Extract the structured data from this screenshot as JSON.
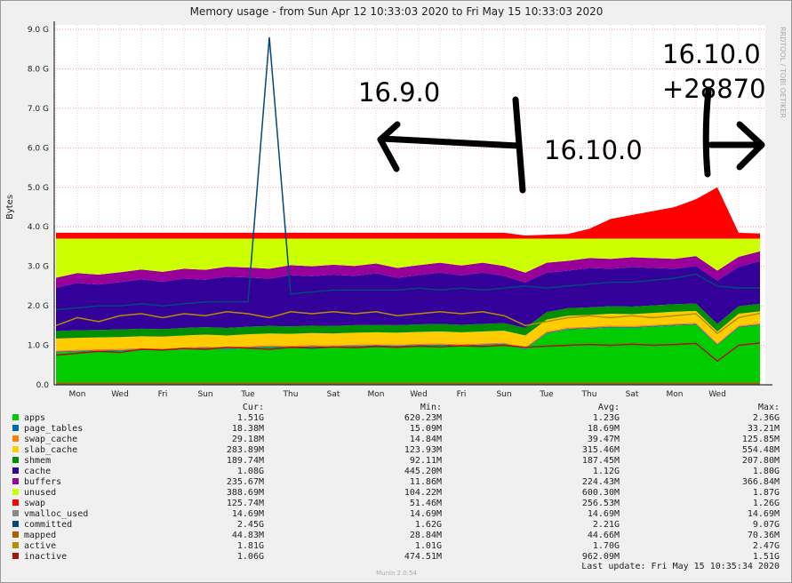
{
  "chart_data": {
    "type": "area",
    "title": "Memory usage - from Sun Apr 12 10:33:03 2020 to Fri May 15 10:33:03 2020",
    "y_label": "Bytes",
    "side_text": "RRDTOOL / TOBI OETIKER",
    "footer": "Munin 2.0.54",
    "last_update": "Last update: Fri May 15 10:35:34 2020",
    "stat_headers": [
      "Cur:",
      "Min:",
      "Avg:",
      "Max:"
    ],
    "annotations": [
      "16.9.0",
      "16.10.0",
      "16.10.0",
      "+28870"
    ],
    "categories": [
      null,
      "Mon",
      null,
      "Wed",
      null,
      "Fri",
      null,
      "Sun",
      null,
      "Tue",
      null,
      "Thu",
      null,
      "Sat",
      null,
      "Mon",
      null,
      "Wed",
      null,
      "Fri",
      null,
      "Sun",
      null,
      "Tue",
      null,
      "Thu",
      null,
      "Sat",
      null,
      "Mon",
      null,
      "Wed",
      null,
      null
    ],
    "ylim": [
      0,
      9
    ],
    "yticks": [
      {
        "value": 0,
        "label": "0.0"
      },
      {
        "value": 1,
        "label": "1.0 G"
      },
      {
        "value": 2,
        "label": "2.0 G"
      },
      {
        "value": 3,
        "label": "3.0 G"
      },
      {
        "value": 4,
        "label": "4.0 G"
      },
      {
        "value": 5,
        "label": "5.0 G"
      },
      {
        "value": 6,
        "label": "6.0 G"
      },
      {
        "value": 7,
        "label": "7.0 G"
      },
      {
        "value": 8,
        "label": "8.0 G"
      },
      {
        "value": 9,
        "label": "9.0 G"
      }
    ],
    "grid": true,
    "series": [
      {
        "name": "apps",
        "color": "#00cc00",
        "style": "stack",
        "stats": [
          "1.51G",
          "620.23M",
          "1.23G",
          "2.36G"
        ],
        "values": [
          0.82,
          0.84,
          0.85,
          0.86,
          0.88,
          0.87,
          0.9,
          0.92,
          0.9,
          0.93,
          0.95,
          0.94,
          0.96,
          0.95,
          0.97,
          0.98,
          0.97,
          0.99,
          1.0,
          0.98,
          1.0,
          1.02,
          0.9,
          1.3,
          1.4,
          1.42,
          1.45,
          1.44,
          1.47,
          1.5,
          1.52,
          1.0,
          1.45,
          1.51
        ]
      },
      {
        "name": "page_tables",
        "color": "#0066b3",
        "style": "stack",
        "stats": [
          "18.38M",
          "15.09M",
          "18.69M",
          "33.21M"
        ],
        "values": [
          0.02,
          0.02,
          0.02,
          0.02,
          0.02,
          0.02,
          0.02,
          0.02,
          0.02,
          0.02,
          0.02,
          0.02,
          0.02,
          0.02,
          0.02,
          0.02,
          0.02,
          0.02,
          0.02,
          0.02,
          0.02,
          0.02,
          0.02,
          0.02,
          0.02,
          0.02,
          0.02,
          0.02,
          0.02,
          0.02,
          0.02,
          0.02,
          0.02,
          0.02
        ]
      },
      {
        "name": "swap_cache",
        "color": "#ff8000",
        "style": "stack",
        "stats": [
          "29.18M",
          "14.84M",
          "39.47M",
          "125.85M"
        ],
        "values": [
          0.03,
          0.03,
          0.03,
          0.03,
          0.03,
          0.03,
          0.03,
          0.03,
          0.03,
          0.03,
          0.03,
          0.03,
          0.03,
          0.03,
          0.03,
          0.03,
          0.03,
          0.03,
          0.03,
          0.03,
          0.03,
          0.03,
          0.03,
          0.03,
          0.03,
          0.03,
          0.03,
          0.03,
          0.03,
          0.03,
          0.03,
          0.03,
          0.03,
          0.03
        ]
      },
      {
        "name": "slab_cache",
        "color": "#ffcc00",
        "style": "stack",
        "stats": [
          "283.89M",
          "123.93M",
          "315.46M",
          "554.48M"
        ],
        "values": [
          0.3,
          0.3,
          0.3,
          0.3,
          0.3,
          0.3,
          0.3,
          0.3,
          0.3,
          0.3,
          0.3,
          0.3,
          0.3,
          0.3,
          0.3,
          0.3,
          0.3,
          0.3,
          0.3,
          0.3,
          0.3,
          0.3,
          0.3,
          0.3,
          0.3,
          0.3,
          0.3,
          0.3,
          0.3,
          0.3,
          0.3,
          0.3,
          0.3,
          0.3
        ]
      },
      {
        "name": "shmem",
        "color": "#008f00",
        "style": "stack",
        "stats": [
          "189.74M",
          "92.11M",
          "187.45M",
          "207.80M"
        ],
        "values": [
          0.19,
          0.19,
          0.19,
          0.19,
          0.19,
          0.19,
          0.19,
          0.19,
          0.19,
          0.19,
          0.19,
          0.19,
          0.19,
          0.19,
          0.19,
          0.19,
          0.19,
          0.19,
          0.19,
          0.19,
          0.19,
          0.19,
          0.19,
          0.19,
          0.19,
          0.19,
          0.19,
          0.19,
          0.19,
          0.19,
          0.19,
          0.19,
          0.19,
          0.19
        ]
      },
      {
        "name": "cache",
        "color": "#330099",
        "style": "stack",
        "stats": [
          "1.08G",
          "445.20M",
          "1.12G",
          "1.80G"
        ],
        "values": [
          1.1,
          1.2,
          1.15,
          1.2,
          1.25,
          1.2,
          1.25,
          1.2,
          1.3,
          1.25,
          1.2,
          1.3,
          1.25,
          1.3,
          1.25,
          1.3,
          1.2,
          1.25,
          1.3,
          1.25,
          1.3,
          1.2,
          1.15,
          1.0,
          0.95,
          1.0,
          0.95,
          1.0,
          0.95,
          0.9,
          0.95,
          1.1,
          1.0,
          1.08
        ]
      },
      {
        "name": "buffers",
        "color": "#990099",
        "style": "stack",
        "stats": [
          "235.67M",
          "11.86M",
          "224.43M",
          "366.84M"
        ],
        "values": [
          0.25,
          0.25,
          0.25,
          0.25,
          0.25,
          0.25,
          0.25,
          0.25,
          0.25,
          0.25,
          0.25,
          0.25,
          0.25,
          0.25,
          0.25,
          0.25,
          0.25,
          0.25,
          0.25,
          0.25,
          0.25,
          0.25,
          0.25,
          0.25,
          0.25,
          0.25,
          0.25,
          0.25,
          0.25,
          0.25,
          0.25,
          0.25,
          0.25,
          0.25
        ]
      },
      {
        "name": "unused",
        "color": "#ccff00",
        "style": "stack",
        "stats": [
          "388.69M",
          "104.22M",
          "600.30M",
          "1.87G"
        ],
        "values": [
          0.99,
          0.87,
          0.91,
          0.85,
          0.78,
          0.84,
          0.76,
          0.79,
          0.71,
          0.73,
          0.76,
          0.67,
          0.7,
          0.66,
          0.69,
          0.63,
          0.74,
          0.67,
          0.61,
          0.68,
          0.61,
          0.69,
          0.86,
          0.61,
          0.56,
          0.49,
          0.51,
          0.47,
          0.49,
          0.51,
          0.44,
          0.81,
          0.46,
          0.32
        ]
      },
      {
        "name": "swap",
        "color": "#ff0000",
        "style": "stack",
        "stats": [
          "125.74M",
          "51.46M",
          "256.53M",
          "1.26G"
        ],
        "values": [
          0.15,
          0.15,
          0.15,
          0.15,
          0.15,
          0.15,
          0.15,
          0.15,
          0.15,
          0.15,
          0.15,
          0.15,
          0.15,
          0.15,
          0.15,
          0.15,
          0.15,
          0.15,
          0.15,
          0.15,
          0.15,
          0.15,
          0.08,
          0.1,
          0.12,
          0.25,
          0.5,
          0.6,
          0.7,
          0.8,
          1.0,
          1.3,
          0.15,
          0.13
        ]
      },
      {
        "name": "vmalloc_used",
        "color": "#888888",
        "style": "line",
        "stats": [
          "14.69M",
          "14.69M",
          "14.69M",
          "14.69M"
        ],
        "values": [
          0.01,
          0.01,
          0.01,
          0.01,
          0.01,
          0.01,
          0.01,
          0.01,
          0.01,
          0.01,
          0.01,
          0.01,
          0.01,
          0.01,
          0.01,
          0.01,
          0.01,
          0.01,
          0.01,
          0.01,
          0.01,
          0.01,
          0.01,
          0.01,
          0.01,
          0.01,
          0.01,
          0.01,
          0.01,
          0.01,
          0.01,
          0.01,
          0.01,
          0.01
        ]
      },
      {
        "name": "committed",
        "color": "#00487d",
        "style": "line",
        "stats": [
          "2.45G",
          "1.62G",
          "2.21G",
          "9.07G"
        ],
        "values": [
          1.9,
          1.95,
          2.0,
          2.0,
          2.05,
          2.0,
          2.05,
          2.1,
          2.1,
          2.1,
          8.8,
          2.3,
          2.35,
          2.4,
          2.4,
          2.4,
          2.4,
          2.45,
          2.4,
          2.45,
          2.4,
          2.45,
          2.5,
          2.45,
          2.5,
          2.55,
          2.6,
          2.6,
          2.65,
          2.7,
          2.8,
          2.5,
          2.45,
          2.45
        ]
      },
      {
        "name": "mapped",
        "color": "#b35a00",
        "style": "line",
        "stats": [
          "44.83M",
          "28.84M",
          "44.66M",
          "70.36M"
        ],
        "values": [
          0.04,
          0.04,
          0.04,
          0.04,
          0.04,
          0.04,
          0.04,
          0.04,
          0.04,
          0.04,
          0.04,
          0.04,
          0.04,
          0.04,
          0.04,
          0.04,
          0.04,
          0.04,
          0.04,
          0.04,
          0.04,
          0.04,
          0.04,
          0.04,
          0.04,
          0.04,
          0.04,
          0.04,
          0.04,
          0.04,
          0.04,
          0.04,
          0.04,
          0.04
        ]
      },
      {
        "name": "active",
        "color": "#b38f00",
        "style": "line",
        "stats": [
          "1.81G",
          "1.01G",
          "1.70G",
          "2.47G"
        ],
        "values": [
          1.5,
          1.7,
          1.6,
          1.75,
          1.8,
          1.7,
          1.8,
          1.75,
          1.85,
          1.8,
          1.7,
          1.85,
          1.8,
          1.85,
          1.8,
          1.85,
          1.75,
          1.8,
          1.85,
          1.8,
          1.85,
          1.75,
          1.5,
          1.6,
          1.7,
          1.75,
          1.7,
          1.75,
          1.7,
          1.75,
          1.8,
          1.3,
          1.7,
          1.81
        ]
      },
      {
        "name": "inactive",
        "color": "#aa1111",
        "style": "line",
        "stats": [
          "1.06G",
          "474.51M",
          "962.09M",
          "1.51G"
        ],
        "values": [
          0.75,
          0.8,
          0.85,
          0.82,
          0.9,
          0.88,
          0.92,
          0.9,
          0.95,
          0.93,
          0.9,
          0.95,
          0.93,
          0.96,
          0.94,
          0.97,
          0.95,
          0.98,
          0.96,
          0.99,
          0.97,
          1.0,
          0.95,
          0.98,
          1.0,
          1.02,
          1.0,
          1.03,
          1.0,
          1.02,
          1.05,
          0.6,
          1.0,
          1.06
        ]
      }
    ]
  }
}
